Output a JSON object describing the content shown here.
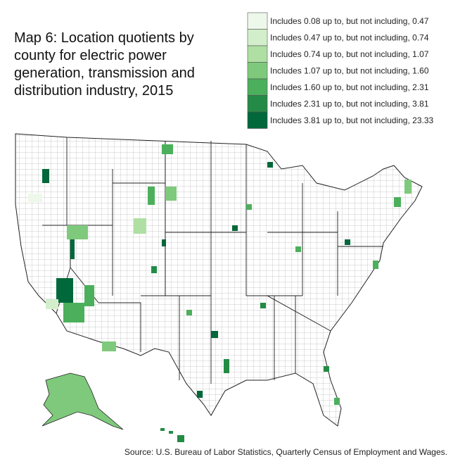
{
  "title": "Map 6: Location quotients by county for electric power generation, transmission and distribution industry, 2015",
  "legend": [
    {
      "label": "Includes 0.08 up to, but not including, 0.47",
      "color": "#eef8ea"
    },
    {
      "label": "Includes 0.47 up to, but not including, 0.74",
      "color": "#d3eecb"
    },
    {
      "label": "Includes 0.74 up to, but not including, 1.07",
      "color": "#afdfa3"
    },
    {
      "label": "Includes 1.07 up to, but not including, 1.60",
      "color": "#7fc97c"
    },
    {
      "label": "Includes 1.60 up to, but not including, 2.31",
      "color": "#4caf5c"
    },
    {
      "label": "Includes 2.31 up to, but not including, 3.81",
      "color": "#238b45"
    },
    {
      "label": "Includes 3.81 up to, but not including, 23.33",
      "color": "#00683a"
    }
  ],
  "source": "Source: U.S. Bureau of Labor Statistics, Quarterly Census of Employment and Wages."
}
